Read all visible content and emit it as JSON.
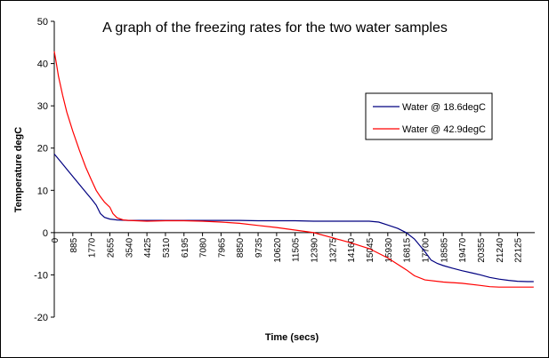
{
  "chart_data": {
    "type": "line",
    "title": "A graph of the freezing rates for the two water samples",
    "xlabel": "Time (secs)",
    "ylabel": "Temperature degC",
    "ylim": [
      -20,
      50
    ],
    "yticks": [
      -20,
      -10,
      0,
      10,
      20,
      30,
      40,
      50
    ],
    "xlim": [
      0,
      22950
    ],
    "xticks": [
      0,
      885,
      1770,
      2655,
      3540,
      4425,
      5310,
      6195,
      7080,
      7965,
      8850,
      9735,
      10620,
      11505,
      12390,
      13275,
      14160,
      15045,
      15930,
      16815,
      17700,
      18585,
      19470,
      20355,
      21240,
      22125
    ],
    "legend_position": "right",
    "series": [
      {
        "name": "Water @ 18.6degC",
        "color": "#000080",
        "x": [
          0,
          300,
          600,
          900,
          1200,
          1500,
          1800,
          2000,
          2200,
          2400,
          2655,
          3000,
          3540,
          4425,
          5310,
          6195,
          7080,
          7965,
          8850,
          9735,
          10620,
          11505,
          12390,
          13275,
          14160,
          15045,
          15500,
          15930,
          16400,
          16815,
          17200,
          17700,
          18000,
          18300,
          18585,
          19000,
          19470,
          20000,
          20355,
          20800,
          21240,
          21700,
          22125,
          22600,
          22900
        ],
        "y": [
          18.6,
          16.8,
          15.0,
          13.2,
          11.4,
          9.6,
          7.8,
          6.5,
          4.5,
          3.6,
          3.2,
          3.0,
          2.9,
          2.9,
          2.9,
          2.9,
          2.9,
          2.9,
          2.9,
          2.8,
          2.8,
          2.8,
          2.7,
          2.7,
          2.7,
          2.7,
          2.5,
          1.8,
          1.0,
          0.0,
          -1.5,
          -4.5,
          -6.5,
          -7.3,
          -7.8,
          -8.4,
          -9.0,
          -9.6,
          -10.0,
          -10.6,
          -11.0,
          -11.3,
          -11.5,
          -11.6,
          -11.6
        ]
      },
      {
        "name": "Water @ 42.9degC",
        "color": "#ff0000",
        "x": [
          0,
          100,
          200,
          400,
          600,
          885,
          1200,
          1500,
          1770,
          2000,
          2200,
          2400,
          2655,
          2800,
          3000,
          3300,
          3540,
          4425,
          5310,
          6195,
          7080,
          7965,
          8850,
          9735,
          10620,
          11505,
          12390,
          13275,
          14160,
          15045,
          15930,
          16815,
          17200,
          17700,
          18585,
          19470,
          20355,
          20800,
          21240,
          21700,
          22125,
          22900
        ],
        "y": [
          42.9,
          40.0,
          37.0,
          32.5,
          28.5,
          24.0,
          19.5,
          15.5,
          12.5,
          10.0,
          8.5,
          7.2,
          6.0,
          4.5,
          3.5,
          3.0,
          2.9,
          2.7,
          2.8,
          2.8,
          2.7,
          2.5,
          2.2,
          1.7,
          1.2,
          0.6,
          0.0,
          -1.2,
          -2.4,
          -3.8,
          -6.0,
          -8.8,
          -10.2,
          -11.2,
          -11.7,
          -12.0,
          -12.5,
          -12.8,
          -12.9,
          -12.9,
          -12.9,
          -12.9
        ]
      }
    ]
  }
}
